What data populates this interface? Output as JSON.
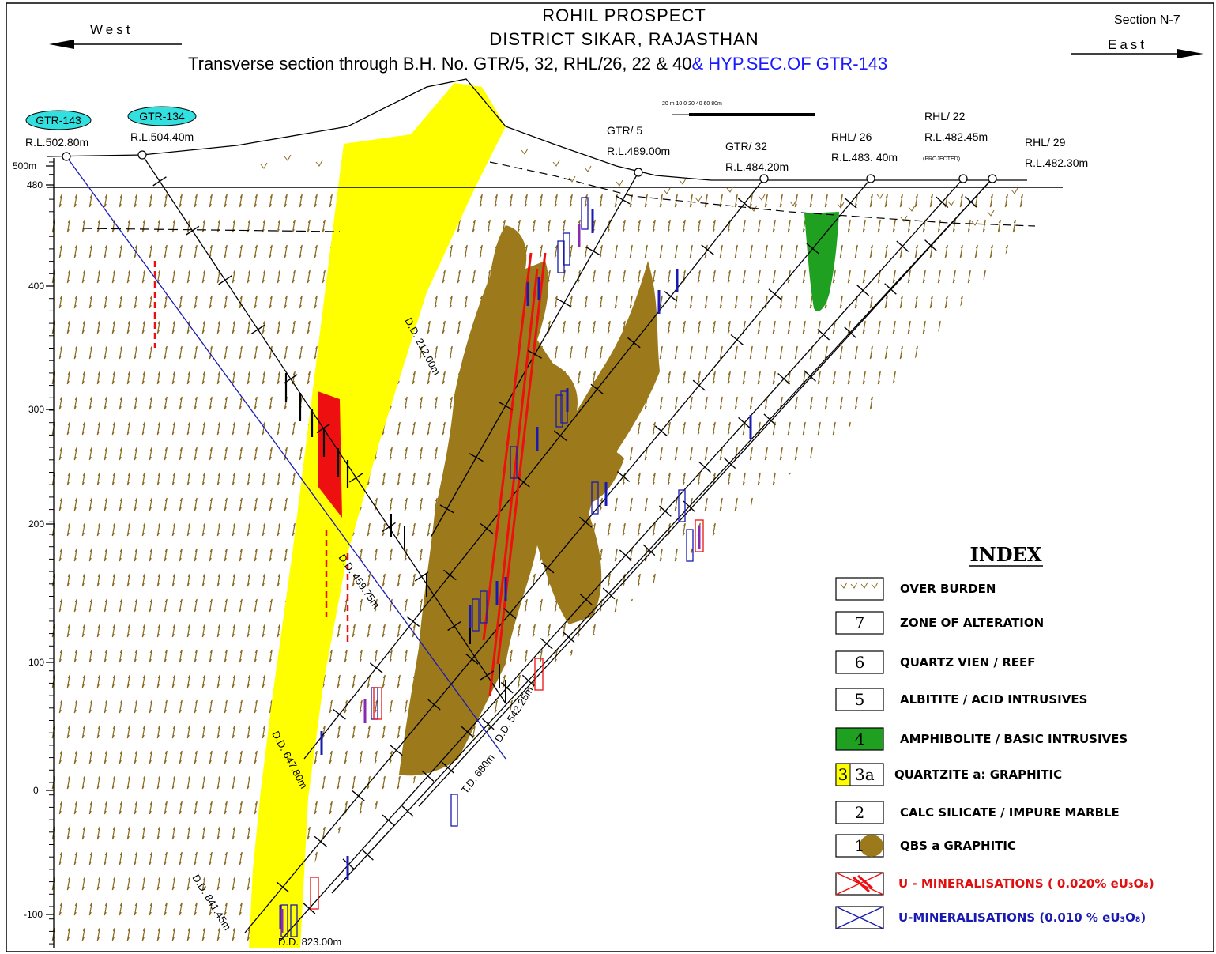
{
  "header": {
    "title_line1": "ROHIL PROSPECT",
    "title_line2": "DISTRICT SIKAR, RAJASTHAN",
    "title_line3_black": "Transverse section through B.H. No.  GTR/5, 32, RHL/26, 22 & 40",
    "title_line3_blue": "& HYP.SEC.OF GTR-143",
    "west": "West",
    "east": "East",
    "section_no": "Section N-7"
  },
  "scale_bar": "20 m 10 0   20   40   60   80m",
  "boreholes": [
    {
      "name": "GTR-143",
      "rl": "R.L.502.80m",
      "highlight": true
    },
    {
      "name": "GTR-134",
      "rl": "R.L.504.40m",
      "highlight": true
    },
    {
      "name": "GTR/ 5",
      "rl": "R.L.489.00m",
      "highlight": false
    },
    {
      "name": "GTR/ 32",
      "rl": "R.L.484.20m",
      "highlight": false
    },
    {
      "name": "RHL/ 26",
      "rl": "R.L.483. 40m",
      "highlight": false
    },
    {
      "name": "RHL/ 22",
      "rl": "R.L.482.45m",
      "note": "(PROJECTED)",
      "highlight": false
    },
    {
      "name": "RHL/ 29",
      "rl": "R.L.482.30m",
      "highlight": false
    }
  ],
  "y_axis": {
    "ticks": [
      "500m",
      "480",
      "400",
      "300",
      "200",
      "100",
      "0",
      "-100"
    ]
  },
  "hole_labels": [
    "D.D. 212.00m",
    "D.D. 459.75m",
    "D.D. 647.80m",
    "D.D. 841.45m",
    "D.D. 823.00m",
    "T.D. 680m",
    "D.D. 542.25m"
  ],
  "index": {
    "title": "INDEX",
    "items": [
      {
        "symbol": "",
        "label": "OVER BURDEN",
        "style": "black"
      },
      {
        "symbol": "7",
        "label": "ZONE OF ALTERATION",
        "style": "black"
      },
      {
        "symbol": "6",
        "label": "QUARTZ VIEN / REEF",
        "style": "black"
      },
      {
        "symbol": "5",
        "label": "ALBITITE / ACID INTRUSIVES",
        "style": "black"
      },
      {
        "symbol": "4",
        "label": "AMPHIBOLITE / BASIC INTRUSIVES",
        "style": "black"
      },
      {
        "symbol": "3",
        "symbol_b": "3a",
        "label": "QUARTZITE  a: GRAPHITIC",
        "style": "black"
      },
      {
        "symbol": "2",
        "label": "CALC  SILICATE  / IMPURE MARBLE",
        "style": "black"
      },
      {
        "symbol": "1",
        "label": "QBS   a  GRAPHITIC",
        "style": "black"
      },
      {
        "symbol": "",
        "label": "U - MINERALISATIONS ( 0.020% eU₃O₈)",
        "style": "red"
      },
      {
        "symbol": "",
        "label": "U-MINERALISATIONS (0.010 % eU₃O₈)",
        "style": "blue"
      }
    ]
  },
  "colors": {
    "quartzite": "#ffff00",
    "graphitic_qbs": "#9c7a1c",
    "amphibolite": "#20a020",
    "mineral_red": "#ee1010",
    "mineral_blue": "#1a1ab0",
    "hatch": "#8a6a20",
    "highlight_cyan": "#33e0e0"
  }
}
